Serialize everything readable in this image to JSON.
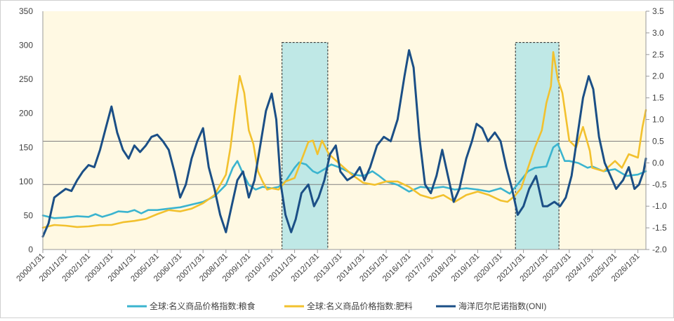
{
  "chart_data": {
    "type": "line",
    "title": "",
    "xlabel": "",
    "ylabel_left": "",
    "ylabel_right": "",
    "colors": {
      "background": "#fff9e3",
      "food": "#3bb4cf",
      "fertilizer": "#f2c12e",
      "oni": "#1b4f86",
      "shade_fill": "#bfe8e6",
      "hline": "#808080"
    },
    "y_left": {
      "min": 0,
      "max": 350,
      "step": 50,
      "ticks": [
        "0",
        "50",
        "100",
        "150",
        "200",
        "250",
        "300",
        "350"
      ]
    },
    "y_right": {
      "min": -2.0,
      "max": 3.5,
      "step": 0.5,
      "ticks": [
        "-2.0",
        "-1.5",
        "-1.0",
        "-0.5",
        "0.0",
        "0.5",
        "1.0",
        "1.5",
        "2.0",
        "2.5",
        "3.0",
        "3.5"
      ]
    },
    "x_ticks": [
      "2000/1/31",
      "2001/1/31",
      "2002/1/31",
      "2003/1/31",
      "2004/1/31",
      "2005/1/31",
      "2006/1/31",
      "2007/1/31",
      "2008/1/31",
      "2009/1/31",
      "2010/1/31",
      "2011/1/31",
      "2012/1/31",
      "2013/1/31",
      "2014/1/31",
      "2015/1/31",
      "2016/1/31",
      "2017/1/31",
      "2018/1/31",
      "2019/1/31",
      "2020/1/31",
      "2021/1/31",
      "2022/1/31",
      "2023/1/31",
      "2024/1/31",
      "2025/1/31",
      "2026/1/31"
    ],
    "x_range": [
      2000.0,
      2026.35
    ],
    "reference_lines_right_axis": [
      0.5,
      -0.5
    ],
    "shaded_periods": [
      [
        2010.45,
        2012.45
      ],
      [
        2020.65,
        2022.55
      ]
    ],
    "legend": [
      "全球:名义商品价格指数:粮食",
      "全球:名义商品价格指数:肥料",
      "海洋厄尔尼诺指数(ONI)"
    ],
    "legend_position": "bottom",
    "series": [
      {
        "name": "全球:名义商品价格指数:粮食",
        "axis": "left",
        "points": [
          [
            2000.0,
            50
          ],
          [
            2000.5,
            46
          ],
          [
            2001.0,
            47
          ],
          [
            2001.5,
            49
          ],
          [
            2002.0,
            48
          ],
          [
            2002.3,
            52
          ],
          [
            2002.6,
            48
          ],
          [
            2003.0,
            52
          ],
          [
            2003.3,
            56
          ],
          [
            2003.7,
            55
          ],
          [
            2004.0,
            58
          ],
          [
            2004.3,
            53
          ],
          [
            2004.6,
            58
          ],
          [
            2005.0,
            58
          ],
          [
            2005.5,
            60
          ],
          [
            2006.0,
            62
          ],
          [
            2006.5,
            66
          ],
          [
            2007.0,
            70
          ],
          [
            2007.5,
            78
          ],
          [
            2008.0,
            95
          ],
          [
            2008.3,
            120
          ],
          [
            2008.5,
            130
          ],
          [
            2008.7,
            115
          ],
          [
            2009.0,
            95
          ],
          [
            2009.3,
            88
          ],
          [
            2009.6,
            92
          ],
          [
            2010.0,
            90
          ],
          [
            2010.3,
            92
          ],
          [
            2010.6,
            100
          ],
          [
            2011.0,
            120
          ],
          [
            2011.2,
            128
          ],
          [
            2011.5,
            125
          ],
          [
            2011.8,
            115
          ],
          [
            2012.0,
            112
          ],
          [
            2012.3,
            118
          ],
          [
            2012.6,
            125
          ],
          [
            2013.0,
            120
          ],
          [
            2013.3,
            115
          ],
          [
            2013.6,
            110
          ],
          [
            2014.0,
            108
          ],
          [
            2014.4,
            115
          ],
          [
            2014.7,
            108
          ],
          [
            2015.0,
            100
          ],
          [
            2015.5,
            95
          ],
          [
            2016.0,
            85
          ],
          [
            2016.5,
            92
          ],
          [
            2017.0,
            90
          ],
          [
            2017.5,
            92
          ],
          [
            2018.0,
            88
          ],
          [
            2018.5,
            90
          ],
          [
            2019.0,
            88
          ],
          [
            2019.5,
            85
          ],
          [
            2020.0,
            90
          ],
          [
            2020.4,
            82
          ],
          [
            2020.8,
            98
          ],
          [
            2021.2,
            115
          ],
          [
            2021.5,
            120
          ],
          [
            2022.0,
            122
          ],
          [
            2022.3,
            150
          ],
          [
            2022.5,
            155
          ],
          [
            2022.8,
            130
          ],
          [
            2023.0,
            130
          ],
          [
            2023.4,
            127
          ],
          [
            2023.8,
            120
          ],
          [
            2024.0,
            122
          ],
          [
            2024.5,
            115
          ],
          [
            2025.0,
            118
          ],
          [
            2025.5,
            108
          ],
          [
            2026.0,
            110
          ],
          [
            2026.35,
            115
          ]
        ]
      },
      {
        "name": "全球:名义商品价格指数:肥料",
        "axis": "left",
        "points": [
          [
            2000.0,
            32
          ],
          [
            2000.5,
            36
          ],
          [
            2001.0,
            35
          ],
          [
            2001.5,
            33
          ],
          [
            2002.0,
            34
          ],
          [
            2002.5,
            36
          ],
          [
            2003.0,
            36
          ],
          [
            2003.5,
            40
          ],
          [
            2004.0,
            42
          ],
          [
            2004.5,
            45
          ],
          [
            2005.0,
            52
          ],
          [
            2005.5,
            58
          ],
          [
            2006.0,
            56
          ],
          [
            2006.5,
            60
          ],
          [
            2007.0,
            68
          ],
          [
            2007.5,
            80
          ],
          [
            2008.0,
            110
          ],
          [
            2008.2,
            150
          ],
          [
            2008.4,
            205
          ],
          [
            2008.6,
            255
          ],
          [
            2008.8,
            230
          ],
          [
            2009.0,
            175
          ],
          [
            2009.2,
            155
          ],
          [
            2009.4,
            115
          ],
          [
            2009.6,
            100
          ],
          [
            2009.8,
            88
          ],
          [
            2010.0,
            90
          ],
          [
            2010.3,
            88
          ],
          [
            2010.6,
            100
          ],
          [
            2011.0,
            105
          ],
          [
            2011.4,
            140
          ],
          [
            2011.6,
            158
          ],
          [
            2011.8,
            160
          ],
          [
            2012.0,
            140
          ],
          [
            2012.2,
            160
          ],
          [
            2012.5,
            140
          ],
          [
            2013.0,
            125
          ],
          [
            2013.5,
            110
          ],
          [
            2014.0,
            98
          ],
          [
            2014.5,
            95
          ],
          [
            2015.0,
            100
          ],
          [
            2015.5,
            100
          ],
          [
            2016.0,
            92
          ],
          [
            2016.5,
            80
          ],
          [
            2017.0,
            75
          ],
          [
            2017.5,
            80
          ],
          [
            2018.0,
            70
          ],
          [
            2018.5,
            80
          ],
          [
            2019.0,
            85
          ],
          [
            2019.5,
            80
          ],
          [
            2020.0,
            72
          ],
          [
            2020.3,
            70
          ],
          [
            2020.6,
            78
          ],
          [
            2020.9,
            90
          ],
          [
            2021.2,
            120
          ],
          [
            2021.5,
            150
          ],
          [
            2021.8,
            175
          ],
          [
            2022.0,
            215
          ],
          [
            2022.2,
            240
          ],
          [
            2022.3,
            290
          ],
          [
            2022.5,
            250
          ],
          [
            2022.7,
            230
          ],
          [
            2023.0,
            160
          ],
          [
            2023.3,
            150
          ],
          [
            2023.6,
            180
          ],
          [
            2023.9,
            145
          ],
          [
            2024.0,
            120
          ],
          [
            2024.5,
            115
          ],
          [
            2025.0,
            130
          ],
          [
            2025.3,
            120
          ],
          [
            2025.6,
            140
          ],
          [
            2026.0,
            135
          ],
          [
            2026.2,
            180
          ],
          [
            2026.35,
            205
          ]
        ]
      },
      {
        "name": "海洋厄尔尼诺指数(ONI)",
        "axis": "right",
        "points": [
          [
            2000.0,
            -1.7
          ],
          [
            2000.25,
            -1.4
          ],
          [
            2000.5,
            -0.8
          ],
          [
            2000.75,
            -0.7
          ],
          [
            2001.0,
            -0.6
          ],
          [
            2001.25,
            -0.65
          ],
          [
            2001.5,
            -0.4
          ],
          [
            2001.75,
            -0.2
          ],
          [
            2002.0,
            -0.05
          ],
          [
            2002.25,
            -0.1
          ],
          [
            2002.5,
            0.3
          ],
          [
            2002.75,
            0.8
          ],
          [
            2003.0,
            1.3
          ],
          [
            2003.25,
            0.7
          ],
          [
            2003.5,
            0.3
          ],
          [
            2003.75,
            0.1
          ],
          [
            2004.0,
            0.4
          ],
          [
            2004.25,
            0.25
          ],
          [
            2004.5,
            0.4
          ],
          [
            2004.75,
            0.6
          ],
          [
            2005.0,
            0.65
          ],
          [
            2005.25,
            0.5
          ],
          [
            2005.5,
            0.3
          ],
          [
            2005.75,
            -0.2
          ],
          [
            2006.0,
            -0.8
          ],
          [
            2006.25,
            -0.5
          ],
          [
            2006.5,
            0.1
          ],
          [
            2006.75,
            0.5
          ],
          [
            2007.0,
            0.8
          ],
          [
            2007.25,
            -0.1
          ],
          [
            2007.5,
            -0.6
          ],
          [
            2007.75,
            -1.2
          ],
          [
            2008.0,
            -1.6
          ],
          [
            2008.25,
            -1.0
          ],
          [
            2008.5,
            -0.4
          ],
          [
            2008.75,
            -0.2
          ],
          [
            2009.0,
            -0.8
          ],
          [
            2009.25,
            -0.4
          ],
          [
            2009.5,
            0.4
          ],
          [
            2009.75,
            1.2
          ],
          [
            2010.0,
            1.6
          ],
          [
            2010.2,
            1.0
          ],
          [
            2010.4,
            -0.5
          ],
          [
            2010.6,
            -1.2
          ],
          [
            2010.85,
            -1.6
          ],
          [
            2011.05,
            -1.3
          ],
          [
            2011.3,
            -0.7
          ],
          [
            2011.6,
            -0.5
          ],
          [
            2011.85,
            -1.0
          ],
          [
            2012.05,
            -0.8
          ],
          [
            2012.3,
            -0.4
          ],
          [
            2012.55,
            0.2
          ],
          [
            2012.8,
            0.4
          ],
          [
            2013.0,
            -0.2
          ],
          [
            2013.3,
            -0.4
          ],
          [
            2013.6,
            -0.3
          ],
          [
            2013.85,
            -0.1
          ],
          [
            2014.05,
            -0.4
          ],
          [
            2014.3,
            -0.1
          ],
          [
            2014.6,
            0.4
          ],
          [
            2014.9,
            0.6
          ],
          [
            2015.2,
            0.5
          ],
          [
            2015.5,
            1.0
          ],
          [
            2015.8,
            2.0
          ],
          [
            2016.0,
            2.6
          ],
          [
            2016.2,
            2.2
          ],
          [
            2016.45,
            0.6
          ],
          [
            2016.7,
            -0.5
          ],
          [
            2016.95,
            -0.7
          ],
          [
            2017.2,
            -0.3
          ],
          [
            2017.45,
            0.3
          ],
          [
            2017.7,
            -0.3
          ],
          [
            2017.95,
            -0.9
          ],
          [
            2018.2,
            -0.6
          ],
          [
            2018.5,
            0.1
          ],
          [
            2018.75,
            0.5
          ],
          [
            2018.95,
            0.9
          ],
          [
            2019.2,
            0.8
          ],
          [
            2019.45,
            0.5
          ],
          [
            2019.75,
            0.7
          ],
          [
            2020.0,
            0.5
          ],
          [
            2020.25,
            -0.1
          ],
          [
            2020.5,
            -0.6
          ],
          [
            2020.75,
            -1.2
          ],
          [
            2021.0,
            -1.0
          ],
          [
            2021.25,
            -0.6
          ],
          [
            2021.55,
            -0.3
          ],
          [
            2021.85,
            -1.0
          ],
          [
            2022.05,
            -1.0
          ],
          [
            2022.35,
            -0.9
          ],
          [
            2022.6,
            -1.0
          ],
          [
            2022.85,
            -0.8
          ],
          [
            2023.1,
            -0.3
          ],
          [
            2023.35,
            0.6
          ],
          [
            2023.6,
            1.5
          ],
          [
            2023.85,
            2.0
          ],
          [
            2024.05,
            1.7
          ],
          [
            2024.3,
            0.6
          ],
          [
            2024.55,
            0.0
          ],
          [
            2024.8,
            -0.3
          ],
          [
            2025.05,
            -0.6
          ],
          [
            2025.35,
            -0.4
          ],
          [
            2025.6,
            -0.1
          ],
          [
            2025.85,
            -0.6
          ],
          [
            2026.05,
            -0.5
          ],
          [
            2026.25,
            -0.2
          ],
          [
            2026.35,
            0.1
          ]
        ]
      }
    ]
  }
}
